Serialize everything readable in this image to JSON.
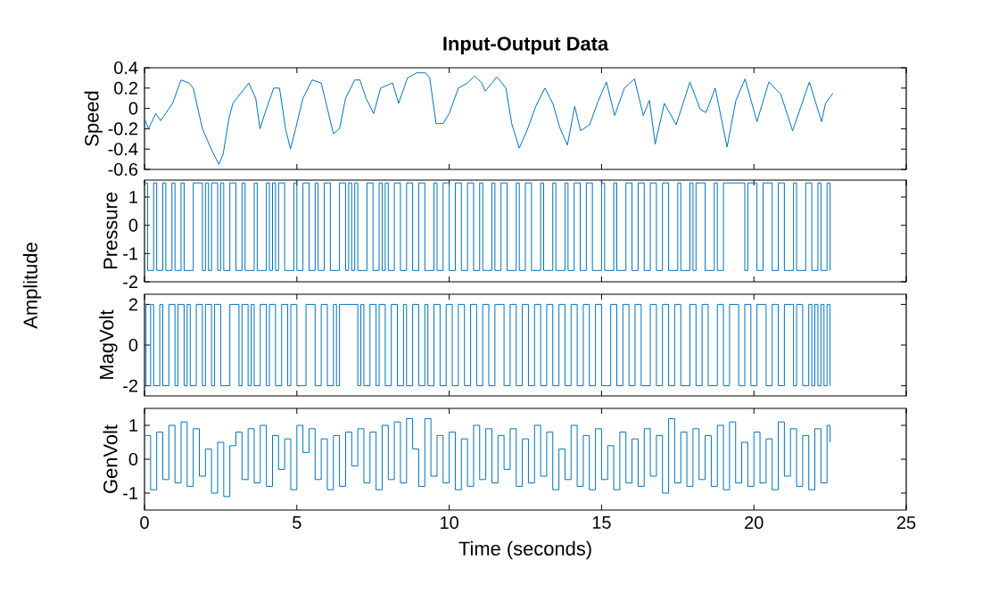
{
  "chart_data": [
    {
      "type": "line",
      "title": "Input-Output Data",
      "ylabel": "Speed",
      "xlim": [
        0,
        25
      ],
      "xticks": [
        0,
        5,
        10,
        15,
        20,
        25
      ],
      "ylim": [
        -0.6,
        0.4
      ],
      "yticks": [
        -0.6,
        -0.4,
        -0.2,
        0,
        0.2,
        0.4
      ],
      "tick_labels": "y",
      "grid": false,
      "series": [
        {
          "color": "#0072bd",
          "x": [
            0,
            0.13,
            0.37,
            0.53,
            0.92,
            1.2,
            1.46,
            1.6,
            1.9,
            2.19,
            2.44,
            2.58,
            2.77,
            2.9,
            3.16,
            3.42,
            3.65,
            3.79,
            3.95,
            4.24,
            4.43,
            4.63,
            4.79,
            4.96,
            5.2,
            5.5,
            5.8,
            5.96,
            6.2,
            6.4,
            6.6,
            6.9,
            7.07,
            7.27,
            7.52,
            7.75,
            8.14,
            8.34,
            8.63,
            8.93,
            9.22,
            9.36,
            9.57,
            9.8,
            10.0,
            10.3,
            10.6,
            10.84,
            11.07,
            11.18,
            11.57,
            11.86,
            12.06,
            12.3,
            12.55,
            12.84,
            13.14,
            13.4,
            13.63,
            13.88,
            14.12,
            14.31,
            14.61,
            14.9,
            15.16,
            15.43,
            15.75,
            16.08,
            16.37,
            16.57,
            16.76,
            17.06,
            17.45,
            17.9,
            18.24,
            18.43,
            18.73,
            19.12,
            19.41,
            19.71,
            20.1,
            20.49,
            20.88,
            21.27,
            21.82,
            22.22,
            22.35,
            22.59
          ],
          "values": [
            -0.1,
            -0.2,
            -0.05,
            -0.12,
            0.05,
            0.28,
            0.25,
            0.2,
            -0.2,
            -0.4,
            -0.55,
            -0.45,
            -0.1,
            0.05,
            0.15,
            0.25,
            0.1,
            -0.2,
            -0.05,
            0.2,
            0.2,
            -0.2,
            -0.4,
            -0.2,
            0.1,
            0.28,
            0.25,
            0.05,
            -0.25,
            -0.2,
            0.1,
            0.28,
            0.28,
            0.1,
            -0.05,
            0.2,
            0.25,
            0.05,
            0.3,
            0.35,
            0.35,
            0.3,
            -0.15,
            -0.15,
            -0.05,
            0.2,
            0.25,
            0.32,
            0.25,
            0.17,
            0.31,
            0.2,
            -0.16,
            -0.39,
            -0.22,
            0.02,
            0.2,
            0.05,
            -0.19,
            -0.36,
            0.02,
            -0.22,
            -0.16,
            0.08,
            0.26,
            -0.07,
            0.2,
            0.29,
            -0.07,
            0.08,
            -0.35,
            0.05,
            -0.16,
            0.26,
            -0.01,
            -0.04,
            0.2,
            -0.38,
            0.08,
            0.29,
            -0.13,
            0.26,
            0.14,
            -0.22,
            0.26,
            -0.13,
            0.05,
            0.15
          ]
        }
      ]
    },
    {
      "type": "step",
      "ylabel": "Pressure",
      "xlim": [
        0,
        25
      ],
      "xticks": [
        0,
        5,
        10,
        15,
        20,
        25
      ],
      "ylim": [
        -2,
        1.6
      ],
      "yticks": [
        -2,
        -1,
        0,
        1
      ],
      "tick_labels": "y",
      "grid": false,
      "series": [
        {
          "color": "#0072bd",
          "x": [
            0,
            0.1,
            0.3,
            0.4,
            0.6,
            0.7,
            0.9,
            1.0,
            1.2,
            1.3,
            1.6,
            1.9,
            2.0,
            2.1,
            2.2,
            2.4,
            2.5,
            2.6,
            2.8,
            3.0,
            3.2,
            3.3,
            3.6,
            3.7,
            4.0,
            4.1,
            4.2,
            4.3,
            4.4,
            4.6,
            4.9,
            5.0,
            5.2,
            5.4,
            5.6,
            5.7,
            5.9,
            6.1,
            6.4,
            6.6,
            6.7,
            6.8,
            6.9,
            7.0,
            7.3,
            7.5,
            7.7,
            7.8,
            7.9,
            8.0,
            8.2,
            8.4,
            8.6,
            8.8,
            9.0,
            9.2,
            9.5,
            9.6,
            9.8,
            10.0,
            10.2,
            10.4,
            10.6,
            10.8,
            11.0,
            11.1,
            11.4,
            11.5,
            11.7,
            11.9,
            12.2,
            12.3,
            12.5,
            12.7,
            13.0,
            13.1,
            13.4,
            13.5,
            13.8,
            13.9,
            14.1,
            14.3,
            14.5,
            14.7,
            15.0,
            15.1,
            15.4,
            15.5,
            15.8,
            16.0,
            16.2,
            16.4,
            16.6,
            16.8,
            17.0,
            17.2,
            17.5,
            17.6,
            17.9,
            18.0,
            18.1,
            18.4,
            18.7,
            18.8,
            19.0,
            19.7,
            19.8,
            20.1,
            20.3,
            20.6,
            20.8,
            21.0,
            21.3,
            21.4,
            21.7,
            21.9,
            22.1,
            22.2,
            22.4,
            22.5
          ],
          "values": [
            1.5,
            -1.6,
            1.5,
            -1.6,
            1.5,
            -1.6,
            1.5,
            -1.6,
            1.5,
            -1.6,
            1.5,
            -1.6,
            1.5,
            -1.6,
            1.5,
            -1.6,
            1.5,
            -1.6,
            1.5,
            -1.6,
            1.5,
            -1.6,
            1.5,
            -1.6,
            1.5,
            -1.6,
            1.5,
            -1.6,
            1.5,
            -1.6,
            1.5,
            -1.6,
            1.5,
            -1.6,
            1.5,
            -1.6,
            1.5,
            -1.6,
            1.5,
            -1.6,
            1.5,
            -1.6,
            1.5,
            -1.6,
            1.5,
            -1.6,
            1.5,
            -1.6,
            1.5,
            -1.6,
            1.5,
            -1.6,
            1.5,
            -1.6,
            1.5,
            -1.6,
            1.5,
            -1.6,
            1.5,
            -1.6,
            1.5,
            -1.6,
            1.5,
            -1.6,
            1.5,
            -1.6,
            1.5,
            -1.6,
            1.5,
            -1.6,
            1.5,
            -1.6,
            1.5,
            -1.6,
            1.5,
            -1.6,
            1.5,
            -1.6,
            1.5,
            -1.6,
            1.5,
            -1.6,
            1.5,
            -1.6,
            1.5,
            -1.6,
            1.5,
            -1.6,
            1.5,
            -1.6,
            1.5,
            -1.6,
            1.5,
            -1.6,
            1.5,
            -1.6,
            1.5,
            -1.6,
            1.5,
            -1.6,
            1.5,
            -1.6,
            1.5,
            -1.6,
            1.5,
            -1.6,
            1.5,
            -1.6,
            1.5,
            -1.6,
            1.5,
            -1.6,
            1.5,
            -1.6,
            1.5,
            -1.6,
            1.5,
            -1.6,
            1.5,
            -1.6
          ]
        }
      ]
    },
    {
      "type": "step",
      "ylabel": "MagVolt",
      "xlim": [
        0,
        25
      ],
      "xticks": [
        0,
        5,
        10,
        15,
        20,
        25
      ],
      "ylim": [
        -2.5,
        2.5
      ],
      "yticks": [
        -2,
        0,
        2
      ],
      "tick_labels": "y",
      "grid": false,
      "series": [
        {
          "color": "#0072bd",
          "x": [
            0,
            0.05,
            0.2,
            0.3,
            0.5,
            0.6,
            0.8,
            1.0,
            1.1,
            1.3,
            1.4,
            1.5,
            1.7,
            1.9,
            2.0,
            2.2,
            2.3,
            2.5,
            2.8,
            3.1,
            3.2,
            3.4,
            3.5,
            3.6,
            3.8,
            4.0,
            4.1,
            4.3,
            4.5,
            4.7,
            4.8,
            5.0,
            5.3,
            5.6,
            5.8,
            6.0,
            6.2,
            6.3,
            6.4,
            7.0,
            7.1,
            7.2,
            7.4,
            7.6,
            7.7,
            7.9,
            8.1,
            8.3,
            8.5,
            8.6,
            8.8,
            9.0,
            9.2,
            9.3,
            9.5,
            9.7,
            9.9,
            10.1,
            10.3,
            10.5,
            10.7,
            10.9,
            11.1,
            11.3,
            11.5,
            11.8,
            12.0,
            12.2,
            12.4,
            12.6,
            12.8,
            13.0,
            13.2,
            13.4,
            13.6,
            13.8,
            14.0,
            14.2,
            14.4,
            14.6,
            14.8,
            15.0,
            15.3,
            15.5,
            15.7,
            15.9,
            16.1,
            16.3,
            16.6,
            16.8,
            17.0,
            17.2,
            17.4,
            17.6,
            17.9,
            18.1,
            18.3,
            18.5,
            18.8,
            19.0,
            19.2,
            19.5,
            19.7,
            19.9,
            20.1,
            20.4,
            20.6,
            20.8,
            21.0,
            21.3,
            21.4,
            21.6,
            21.8,
            21.9,
            22.0,
            22.1,
            22.2,
            22.3,
            22.4,
            22.5
          ],
          "values": [
            2,
            -2,
            2,
            -2,
            2,
            -2,
            2,
            -2,
            2,
            -2,
            2,
            -2,
            2,
            -2,
            2,
            -2,
            2,
            -2,
            2,
            -2,
            2,
            -2,
            2,
            -2,
            2,
            -2,
            2,
            -2,
            2,
            -2,
            2,
            -2,
            2,
            -2,
            2,
            -2,
            2,
            -2,
            2,
            -2,
            2,
            -2,
            2,
            -2,
            2,
            -2,
            2,
            -2,
            2,
            -2,
            2,
            -2,
            2,
            -2,
            2,
            -2,
            2,
            -2,
            2,
            -2,
            2,
            -2,
            2,
            -2,
            2,
            -2,
            2,
            -2,
            2,
            -2,
            2,
            -2,
            2,
            -2,
            2,
            -2,
            2,
            -2,
            2,
            -2,
            2,
            -2,
            2,
            -2,
            2,
            -2,
            2,
            -2,
            2,
            -2,
            2,
            -2,
            2,
            -2,
            2,
            -2,
            2,
            -2,
            2,
            -2,
            2,
            -2,
            2,
            -2,
            2,
            -2,
            2,
            -2,
            2,
            -2,
            2,
            -2,
            2,
            -2,
            2,
            -2,
            2,
            -2,
            2,
            -2
          ]
        }
      ]
    },
    {
      "type": "step",
      "ylabel": "GenVolt",
      "xlabel": "Time (seconds)",
      "annotations": [
        "Amplitude"
      ],
      "xlim": [
        0,
        25
      ],
      "xticks": [
        0,
        5,
        10,
        15,
        20,
        25
      ],
      "ylim": [
        -1.5,
        1.5
      ],
      "yticks": [
        -1,
        0,
        1
      ],
      "grid": false,
      "series": [
        {
          "color": "#0072bd",
          "x": [
            0,
            0.2,
            0.4,
            0.6,
            0.8,
            1.0,
            1.2,
            1.4,
            1.6,
            1.8,
            2.0,
            2.2,
            2.4,
            2.6,
            2.8,
            3.0,
            3.2,
            3.4,
            3.6,
            3.8,
            4.0,
            4.2,
            4.4,
            4.6,
            4.8,
            5.0,
            5.2,
            5.4,
            5.6,
            5.8,
            6.0,
            6.2,
            6.4,
            6.6,
            6.8,
            7.0,
            7.2,
            7.4,
            7.6,
            7.8,
            8.0,
            8.2,
            8.4,
            8.6,
            8.8,
            9.0,
            9.2,
            9.4,
            9.6,
            9.8,
            10.0,
            10.2,
            10.4,
            10.6,
            10.8,
            11.0,
            11.2,
            11.4,
            11.6,
            11.8,
            12.0,
            12.2,
            12.4,
            12.6,
            12.8,
            13.0,
            13.2,
            13.4,
            13.6,
            13.8,
            14.0,
            14.2,
            14.4,
            14.6,
            14.8,
            15.0,
            15.2,
            15.4,
            15.6,
            15.8,
            16.0,
            16.2,
            16.4,
            16.6,
            16.8,
            17.0,
            17.2,
            17.4,
            17.6,
            17.8,
            18.0,
            18.2,
            18.4,
            18.6,
            18.8,
            19.0,
            19.2,
            19.4,
            19.6,
            19.8,
            20.0,
            20.2,
            20.4,
            20.6,
            20.8,
            21.0,
            21.2,
            21.4,
            21.6,
            21.8,
            22.0,
            22.2,
            22.4,
            22.5
          ],
          "values": [
            0.7,
            -0.9,
            0.8,
            -0.6,
            1.0,
            -0.7,
            1.1,
            -0.8,
            0.9,
            -0.5,
            0.3,
            -1.0,
            0.5,
            -1.1,
            0.4,
            0.8,
            -0.6,
            0.9,
            -0.7,
            1.0,
            -0.8,
            0.7,
            -0.3,
            0.6,
            -0.9,
            1.0,
            0.2,
            0.9,
            -0.6,
            0.6,
            -0.9,
            0.7,
            -0.8,
            0.8,
            -0.2,
            0.9,
            -0.7,
            0.8,
            -0.9,
            1.0,
            -0.6,
            1.1,
            -0.7,
            1.2,
            0.3,
            -0.8,
            1.2,
            -0.5,
            0.7,
            -0.7,
            0.8,
            -0.9,
            0.6,
            -0.8,
            1.0,
            -0.6,
            0.9,
            -0.7,
            0.7,
            -0.3,
            0.9,
            -0.8,
            0.6,
            -0.7,
            1.0,
            -0.5,
            0.8,
            -0.9,
            0.3,
            -0.6,
            1.0,
            -0.8,
            0.7,
            -0.9,
            0.9,
            -0.6,
            0.4,
            -0.9,
            0.8,
            -0.7,
            0.6,
            -0.8,
            0.9,
            -0.5,
            0.7,
            -1.0,
            1.2,
            -0.7,
            0.8,
            -0.8,
            0.9,
            -0.6,
            0.7,
            -0.8,
            1.0,
            -0.9,
            1.1,
            -0.7,
            0.5,
            -0.8,
            0.8,
            -0.7,
            0.6,
            -0.9,
            1.1,
            -0.5,
            0.9,
            -0.8,
            0.7,
            -0.9,
            0.9,
            -0.7,
            1.0,
            0.5
          ]
        }
      ]
    }
  ]
}
